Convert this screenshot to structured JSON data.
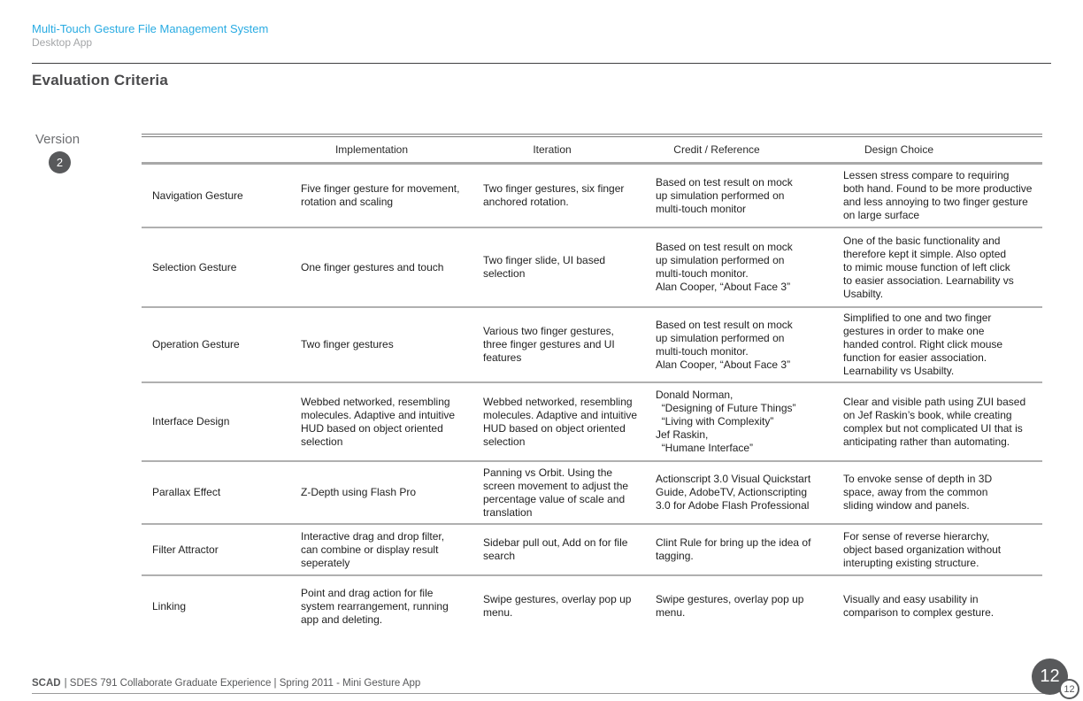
{
  "header": {
    "title": "Multi-Touch Gesture File Management System",
    "subtitle": "Desktop App"
  },
  "section": {
    "title": "Evaluation Criteria",
    "version_label": "Version",
    "version_number": "2"
  },
  "colors": {
    "accent": "#29ABE2",
    "badge_gray": "#58595B"
  },
  "table": {
    "columns": [
      "",
      "Implementation",
      "Iteration",
      "Credit / Reference",
      "Design Choice"
    ],
    "rows": [
      {
        "label": "Navigation Gesture",
        "implementation": "Five finger gesture for movement,\nrotation and scaling",
        "iteration": "Two finger gestures, six finger\nanchored rotation.",
        "credit": "Based on test result on mock\nup simulation performed on\nmulti-touch monitor",
        "design": "Lessen stress compare to requiring\nboth hand. Found to be more productive\nand less annoying to two finger gesture\non large surface"
      },
      {
        "label": "Selection Gesture",
        "implementation": "One finger gestures and touch",
        "iteration": "Two finger slide, UI based\nselection",
        "credit": "Based on test result on mock\nup simulation performed on\nmulti-touch monitor.\nAlan Cooper, “About Face 3”",
        "design": "One of the basic functionality and\ntherefore kept it simple. Also opted\nto mimic mouse function of left click\nto easier association. Learnability vs\nUsabilty."
      },
      {
        "label": "Operation Gesture",
        "implementation": "Two finger gestures",
        "iteration": "Various two finger gestures,\nthree finger gestures and UI\nfeatures",
        "credit": "Based on test result on mock\nup simulation performed on\nmulti-touch monitor.\nAlan Cooper, “About Face 3”",
        "design": "Simplified to one and two finger\ngestures in order to make one\nhanded control. Right click mouse\nfunction for easier association.\nLearnability vs Usabilty."
      },
      {
        "label": "Interface Design",
        "implementation": "Webbed networked, resembling\nmolecules. Adaptive and intuitive\nHUD based on object oriented\nselection",
        "iteration": "Webbed networked, resembling\nmolecules. Adaptive and intuitive\nHUD based on object oriented\nselection",
        "credit": "Donald Norman,\n  “Designing of Future Things”\n  “Living with Complexity”\nJef Raskin,\n  “Humane Interface”",
        "design": "Clear and visible path using ZUI based\non Jef Raskin’s book, while creating\ncomplex but not complicated UI that is\nanticipating rather than automating."
      },
      {
        "label": "Parallax Effect",
        "implementation": "Z-Depth using Flash Pro",
        "iteration": "Panning vs Orbit. Using the\nscreen movement to adjust the\npercentage value of scale and\ntranslation",
        "credit": "Actionscript 3.0 Visual Quickstart\nGuide, AdobeTV, Actionscripting\n3.0 for Adobe Flash Professional",
        "design": "To envoke sense of depth in 3D\nspace, away from the common\nsliding window and panels."
      },
      {
        "label": "Filter Attractor",
        "implementation": "Interactive drag and drop filter,\ncan combine or display result\nseperately",
        "iteration": "Sidebar pull out, Add on for file\nsearch",
        "credit": "Clint Rule for bring up the idea of\ntagging.",
        "design": "For sense of reverse hierarchy,\nobject based organization without\ninterupting existing structure."
      },
      {
        "label": "Linking",
        "implementation": "Point and drag action for file\nsystem rearrangement, running\napp and deleting.",
        "iteration": "Swipe gestures, overlay pop up\nmenu.",
        "credit": "Swipe gestures, overlay pop up\nmenu.",
        "design": "Visually and easy usability in\ncomparison to complex gesture."
      }
    ]
  },
  "footer": {
    "brand": "SCAD",
    "text": "| SDES 791 Collaborate Graduate Experience | Spring 2011 - Mini Gesture App",
    "page_number": "12",
    "page_number_small": "12"
  }
}
